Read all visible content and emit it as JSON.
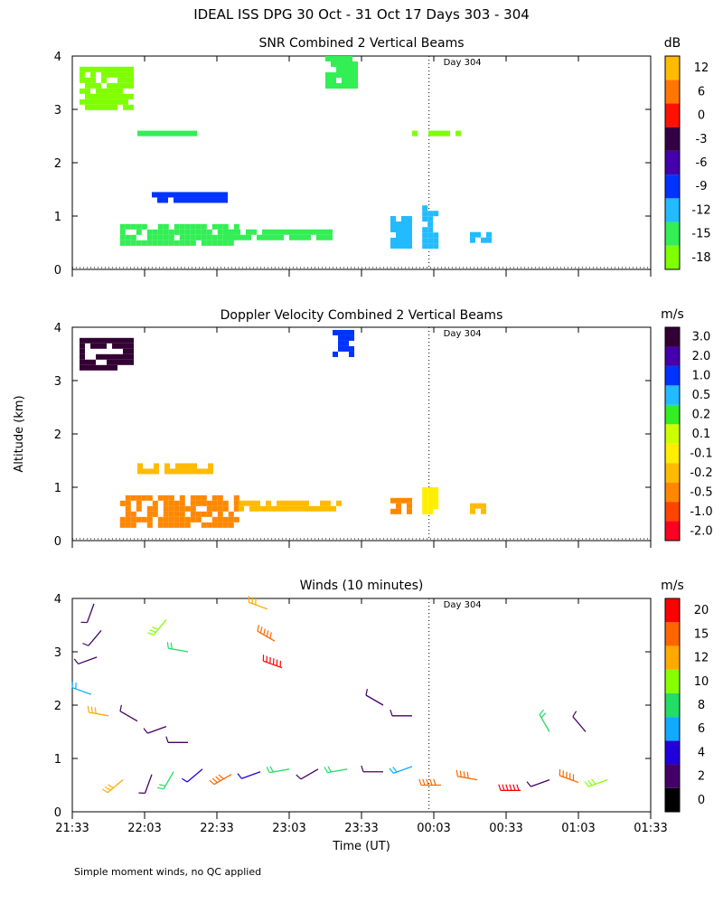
{
  "figure_title": "IDEAL ISS DPG  30 Oct - 31 Oct 17 Days 303 - 304",
  "footnote": "Simple moment winds, no QC applied",
  "chart_data": [
    {
      "type": "heatmap",
      "title": "SNR Combined 2 Vertical Beams",
      "xlabel": "",
      "ylabel": "Altitude (km)",
      "ylim": [
        0,
        4
      ],
      "yticks": [
        "0",
        "1",
        "2",
        "3",
        "4"
      ],
      "day_marker": "Day 304",
      "colorbar": {
        "unit": "dB",
        "labels": [
          "-18",
          "-15",
          "-12",
          "-9",
          "-6",
          "-3",
          "0",
          "6",
          "12"
        ],
        "colors": [
          "#7fff00",
          "#33ee55",
          "#22bbff",
          "#0033ff",
          "#4400aa",
          "#330044",
          "#ff1100",
          "#ff7700",
          "#ffbb00"
        ]
      },
      "features": [
        {
          "t": [
            22.1,
            22.6
          ],
          "z": [
            1.25,
            1.45
          ],
          "value": -9
        },
        {
          "t": [
            21.88,
            22.7
          ],
          "z": [
            0.45,
            0.85
          ],
          "value": -15
        },
        {
          "t": [
            22.6,
            23.35
          ],
          "z": [
            0.55,
            0.75
          ],
          "value": -15
        },
        {
          "t": [
            23.3,
            23.5
          ],
          "z": [
            3.4,
            4.0
          ],
          "value": -15
        },
        {
          "t": [
            21.6,
            21.95
          ],
          "z": [
            3.0,
            3.8
          ],
          "value": -18
        },
        {
          "t": [
            22.0,
            22.4
          ],
          "z": [
            2.5,
            2.6
          ],
          "value": -15
        },
        {
          "t": [
            23.75,
            23.88
          ],
          "z": [
            0.4,
            1.0
          ],
          "value": -12
        },
        {
          "t": [
            23.97,
            24.08
          ],
          "z": [
            0.4,
            1.2
          ],
          "value": -12
        },
        {
          "t": [
            24.3,
            24.45
          ],
          "z": [
            0.5,
            0.7
          ],
          "value": -12
        },
        {
          "t": [
            23.9,
            24.2
          ],
          "z": [
            2.5,
            2.6
          ],
          "value": -18
        }
      ]
    },
    {
      "type": "heatmap",
      "title": "Doppler Velocity Combined 2 Vertical Beams",
      "xlabel": "",
      "ylabel": "Altitude (km)",
      "ylim": [
        0,
        4
      ],
      "yticks": [
        "0",
        "1",
        "2",
        "3",
        "4"
      ],
      "day_marker": "Day 304",
      "colorbar": {
        "unit": "m/s",
        "labels": [
          "-2.0",
          "-1.0",
          "-0.5",
          "-0.2",
          "-0.1",
          "0.1",
          "0.2",
          "0.5",
          "1.0",
          "2.0",
          "3.0"
        ],
        "colors": [
          "#ff0022",
          "#ff4400",
          "#ff8800",
          "#ffbb00",
          "#ffee00",
          "#ccff00",
          "#33ee22",
          "#22bbff",
          "#0033ff",
          "#4400aa",
          "#330033"
        ]
      },
      "features": [
        {
          "t": [
            21.6,
            21.95
          ],
          "z": [
            3.2,
            3.8
          ],
          "value": 3.0
        },
        {
          "t": [
            23.35,
            23.5
          ],
          "z": [
            3.5,
            3.95
          ],
          "value": 1.0
        },
        {
          "t": [
            22.0,
            22.5
          ],
          "z": [
            1.25,
            1.45
          ],
          "value": -0.2
        },
        {
          "t": [
            21.88,
            22.7
          ],
          "z": [
            0.3,
            0.85
          ],
          "value": -0.5
        },
        {
          "t": [
            22.7,
            23.4
          ],
          "z": [
            0.55,
            0.75
          ],
          "value": -0.2
        },
        {
          "t": [
            23.75,
            23.88
          ],
          "z": [
            0.5,
            0.8
          ],
          "value": -0.5
        },
        {
          "t": [
            23.97,
            24.05
          ],
          "z": [
            0.5,
            1.0
          ],
          "value": -0.1
        },
        {
          "t": [
            24.3,
            24.4
          ],
          "z": [
            0.55,
            0.7
          ],
          "value": -0.2
        }
      ]
    },
    {
      "type": "scatter",
      "title": "Winds (10 minutes)",
      "xlabel": "Time (UT)",
      "ylabel": "Altitude (km)",
      "ylim": [
        0,
        4
      ],
      "yticks": [
        "0",
        "1",
        "2",
        "3",
        "4"
      ],
      "xticks": [
        "21:33",
        "22:03",
        "22:33",
        "23:03",
        "23:33",
        "00:03",
        "00:33",
        "01:03",
        "01:33"
      ],
      "day_marker": "Day 304",
      "colorbar": {
        "unit": "m/s",
        "labels": [
          "0",
          "2",
          "4",
          "6",
          "8",
          "10",
          "12",
          "15",
          "20"
        ],
        "colors": [
          "#000000",
          "#440066",
          "#2200dd",
          "#11aaff",
          "#22dd66",
          "#88ff00",
          "#ffaa00",
          "#ff6600",
          "#ff0000"
        ]
      },
      "barbs": [
        {
          "t": 21.7,
          "z": 3.9,
          "speed": 3,
          "dir": 200
        },
        {
          "t": 21.75,
          "z": 3.4,
          "speed": 3,
          "dir": 220
        },
        {
          "t": 21.72,
          "z": 2.9,
          "speed": 2,
          "dir": 250
        },
        {
          "t": 21.68,
          "z": 2.2,
          "speed": 7,
          "dir": 290
        },
        {
          "t": 21.8,
          "z": 1.8,
          "speed": 13,
          "dir": 280
        },
        {
          "t": 22.0,
          "z": 1.7,
          "speed": 3,
          "dir": 300
        },
        {
          "t": 22.2,
          "z": 1.6,
          "speed": 2,
          "dir": 250
        },
        {
          "t": 22.35,
          "z": 1.3,
          "speed": 3,
          "dir": 270
        },
        {
          "t": 21.9,
          "z": 0.6,
          "speed": 12,
          "dir": 230
        },
        {
          "t": 22.1,
          "z": 0.7,
          "speed": 3,
          "dir": 200
        },
        {
          "t": 22.25,
          "z": 0.75,
          "speed": 8,
          "dir": 210
        },
        {
          "t": 22.45,
          "z": 0.8,
          "speed": 4,
          "dir": 230
        },
        {
          "t": 22.65,
          "z": 0.7,
          "speed": 15,
          "dir": 240
        },
        {
          "t": 22.85,
          "z": 0.75,
          "speed": 4,
          "dir": 250
        },
        {
          "t": 23.05,
          "z": 0.8,
          "speed": 8,
          "dir": 260
        },
        {
          "t": 23.25,
          "z": 0.8,
          "speed": 3,
          "dir": 240
        },
        {
          "t": 23.45,
          "z": 0.8,
          "speed": 8,
          "dir": 260
        },
        {
          "t": 23.7,
          "z": 0.75,
          "speed": 3,
          "dir": 270
        },
        {
          "t": 23.9,
          "z": 0.85,
          "speed": 7,
          "dir": 250
        },
        {
          "t": 24.1,
          "z": 0.5,
          "speed": 18,
          "dir": 270
        },
        {
          "t": 24.35,
          "z": 0.6,
          "speed": 15,
          "dir": 280
        },
        {
          "t": 24.65,
          "z": 0.4,
          "speed": 22,
          "dir": 270
        },
        {
          "t": 24.85,
          "z": 0.6,
          "speed": 3,
          "dir": 250
        },
        {
          "t": 25.05,
          "z": 0.55,
          "speed": 18,
          "dir": 290
        },
        {
          "t": 25.25,
          "z": 0.6,
          "speed": 11,
          "dir": 250
        },
        {
          "t": 22.9,
          "z": 3.8,
          "speed": 13,
          "dir": 290
        },
        {
          "t": 22.95,
          "z": 3.2,
          "speed": 18,
          "dir": 300
        },
        {
          "t": 23.0,
          "z": 2.7,
          "speed": 22,
          "dir": 290
        },
        {
          "t": 22.2,
          "z": 3.6,
          "speed": 10,
          "dir": 220
        },
        {
          "t": 22.35,
          "z": 3.0,
          "speed": 8,
          "dir": 280
        },
        {
          "t": 23.7,
          "z": 2.0,
          "speed": 3,
          "dir": 300
        },
        {
          "t": 23.9,
          "z": 1.8,
          "speed": 2,
          "dir": 270
        },
        {
          "t": 24.85,
          "z": 1.5,
          "speed": 8,
          "dir": 330
        },
        {
          "t": 25.1,
          "z": 1.5,
          "speed": 3,
          "dir": 320
        }
      ]
    }
  ]
}
